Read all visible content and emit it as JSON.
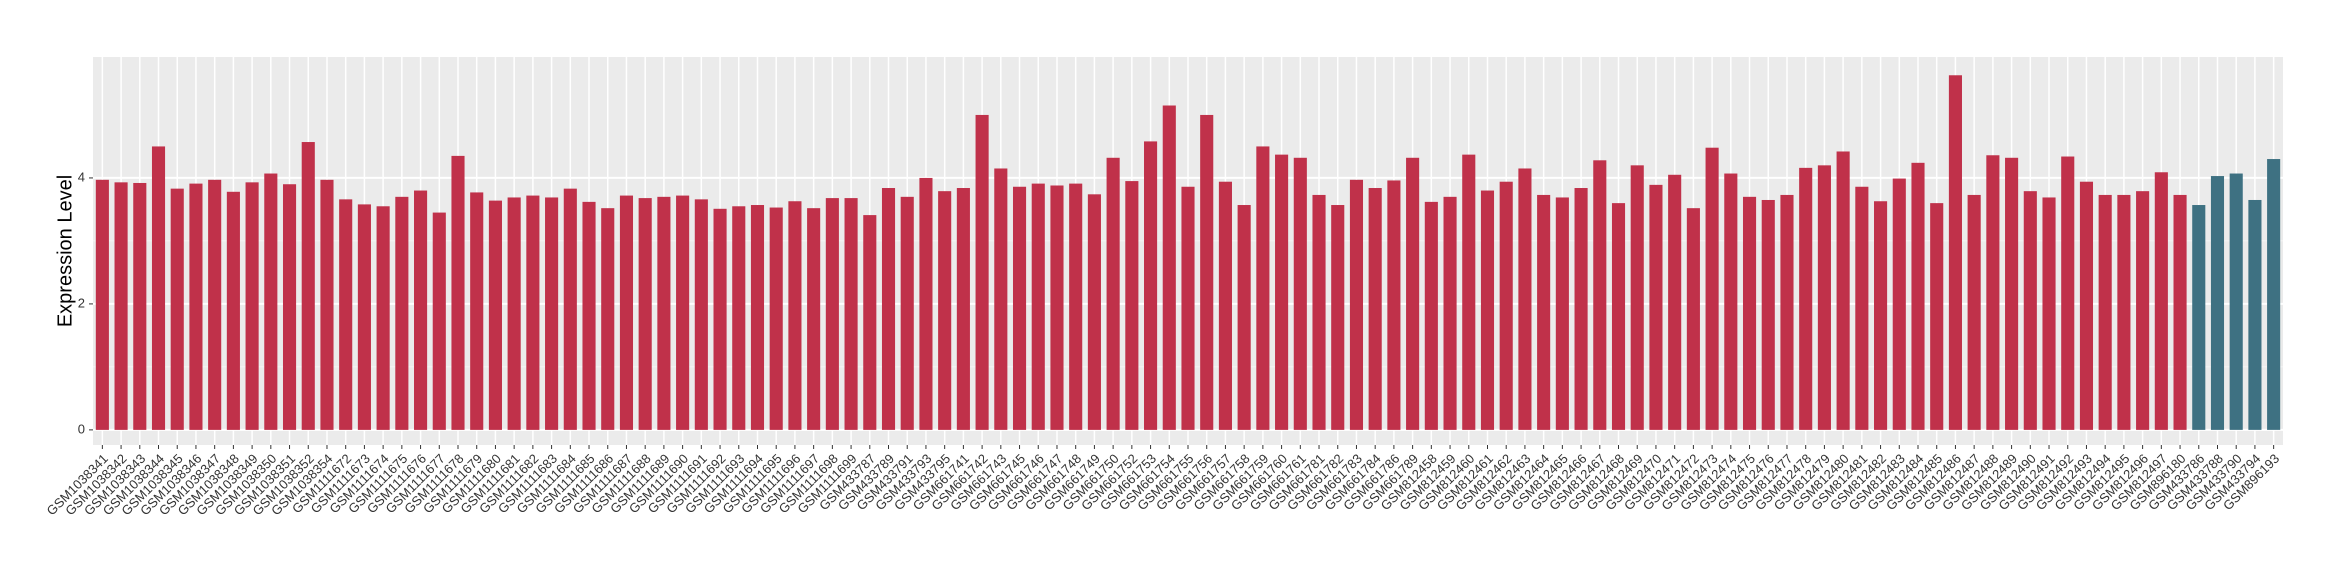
{
  "chart_data": {
    "type": "bar",
    "y_label": "Expression Level",
    "categories": [
      "GSM1038341",
      "GSM1038342",
      "GSM1038343",
      "GSM1038344",
      "GSM1038345",
      "GSM1038346",
      "GSM1038347",
      "GSM1038348",
      "GSM1038349",
      "GSM1038350",
      "GSM1038351",
      "GSM1038352",
      "GSM1038354",
      "GSM1111672",
      "GSM1111673",
      "GSM1111674",
      "GSM1111675",
      "GSM1111676",
      "GSM1111677",
      "GSM1111678",
      "GSM1111679",
      "GSM1111680",
      "GSM1111681",
      "GSM1111682",
      "GSM1111683",
      "GSM1111684",
      "GSM1111685",
      "GSM1111686",
      "GSM1111687",
      "GSM1111688",
      "GSM1111689",
      "GSM1111690",
      "GSM1111691",
      "GSM1111692",
      "GSM1111693",
      "GSM1111694",
      "GSM1111695",
      "GSM1111696",
      "GSM1111697",
      "GSM1111698",
      "GSM1111699",
      "GSM433787",
      "GSM433789",
      "GSM433791",
      "GSM433793",
      "GSM433795",
      "GSM661741",
      "GSM661742",
      "GSM661743",
      "GSM661745",
      "GSM661746",
      "GSM661747",
      "GSM661748",
      "GSM661749",
      "GSM661750",
      "GSM661752",
      "GSM661753",
      "GSM661754",
      "GSM661755",
      "GSM661756",
      "GSM661757",
      "GSM661758",
      "GSM661759",
      "GSM661760",
      "GSM661761",
      "GSM661781",
      "GSM661782",
      "GSM661783",
      "GSM661784",
      "GSM661786",
      "GSM661789",
      "GSM812458",
      "GSM812459",
      "GSM812460",
      "GSM812461",
      "GSM812462",
      "GSM812463",
      "GSM812464",
      "GSM812465",
      "GSM812466",
      "GSM812467",
      "GSM812468",
      "GSM812469",
      "GSM812470",
      "GSM812471",
      "GSM812472",
      "GSM812473",
      "GSM812474",
      "GSM812475",
      "GSM812476",
      "GSM812477",
      "GSM812478",
      "GSM812479",
      "GSM812480",
      "GSM812481",
      "GSM812482",
      "GSM812483",
      "GSM812484",
      "GSM812485",
      "GSM812486",
      "GSM812487",
      "GSM812488",
      "GSM812489",
      "GSM812490",
      "GSM812491",
      "GSM812492",
      "GSM812493",
      "GSM812494",
      "GSM812495",
      "GSM812496",
      "GSM812497",
      "GSM896180",
      "GSM433786",
      "GSM433788",
      "GSM433790",
      "GSM433794",
      "GSM896193"
    ],
    "values": [
      3.97,
      3.93,
      3.92,
      4.5,
      3.83,
      3.91,
      3.97,
      3.78,
      3.93,
      4.07,
      3.9,
      4.57,
      3.97,
      3.66,
      3.58,
      3.55,
      3.7,
      3.8,
      3.45,
      4.35,
      3.77,
      3.64,
      3.69,
      3.72,
      3.69,
      3.83,
      3.62,
      3.52,
      3.72,
      3.68,
      3.7,
      3.72,
      3.66,
      3.51,
      3.55,
      3.57,
      3.53,
      3.63,
      3.52,
      3.68,
      3.68,
      3.41,
      3.84,
      3.7,
      4.0,
      3.79,
      3.84,
      5.0,
      4.15,
      3.86,
      3.91,
      3.88,
      3.91,
      3.74,
      4.32,
      3.95,
      4.58,
      5.15,
      3.86,
      5.0,
      3.94,
      3.57,
      4.5,
      4.37,
      4.32,
      3.73,
      3.57,
      3.97,
      3.84,
      3.96,
      4.32,
      3.62,
      3.7,
      4.37,
      3.8,
      3.94,
      4.15,
      3.73,
      3.69,
      3.84,
      4.28,
      3.6,
      4.2,
      3.89,
      4.05,
      3.52,
      4.48,
      4.07,
      3.7,
      3.65,
      3.73,
      4.16,
      4.2,
      4.42,
      3.86,
      3.63,
      3.99,
      4.24,
      3.6,
      5.63,
      3.73,
      4.36,
      4.32,
      3.79,
      3.69,
      4.34,
      3.94,
      3.73,
      3.73,
      3.79,
      4.09,
      3.73,
      3.57,
      4.03,
      4.07,
      3.65,
      4.3
    ],
    "colors": [
      "#c0314a",
      "#c0314a",
      "#c0314a",
      "#c0314a",
      "#c0314a",
      "#c0314a",
      "#c0314a",
      "#c0314a",
      "#c0314a",
      "#c0314a",
      "#c0314a",
      "#c0314a",
      "#c0314a",
      "#c0314a",
      "#c0314a",
      "#c0314a",
      "#c0314a",
      "#c0314a",
      "#c0314a",
      "#c0314a",
      "#c0314a",
      "#c0314a",
      "#c0314a",
      "#c0314a",
      "#c0314a",
      "#c0314a",
      "#c0314a",
      "#c0314a",
      "#c0314a",
      "#c0314a",
      "#c0314a",
      "#c0314a",
      "#c0314a",
      "#c0314a",
      "#c0314a",
      "#c0314a",
      "#c0314a",
      "#c0314a",
      "#c0314a",
      "#c0314a",
      "#c0314a",
      "#c0314a",
      "#c0314a",
      "#c0314a",
      "#c0314a",
      "#c0314a",
      "#c0314a",
      "#c0314a",
      "#c0314a",
      "#c0314a",
      "#c0314a",
      "#c0314a",
      "#c0314a",
      "#c0314a",
      "#c0314a",
      "#c0314a",
      "#c0314a",
      "#c0314a",
      "#c0314a",
      "#c0314a",
      "#c0314a",
      "#c0314a",
      "#c0314a",
      "#c0314a",
      "#c0314a",
      "#c0314a",
      "#c0314a",
      "#c0314a",
      "#c0314a",
      "#c0314a",
      "#c0314a",
      "#c0314a",
      "#c0314a",
      "#c0314a",
      "#c0314a",
      "#c0314a",
      "#c0314a",
      "#c0314a",
      "#c0314a",
      "#c0314a",
      "#c0314a",
      "#c0314a",
      "#c0314a",
      "#c0314a",
      "#c0314a",
      "#c0314a",
      "#c0314a",
      "#c0314a",
      "#c0314a",
      "#c0314a",
      "#c0314a",
      "#c0314a",
      "#c0314a",
      "#c0314a",
      "#c0314a",
      "#c0314a",
      "#c0314a",
      "#c0314a",
      "#c0314a",
      "#c0314a",
      "#c0314a",
      "#c0314a",
      "#c0314a",
      "#c0314a",
      "#c0314a",
      "#c0314a",
      "#c0314a",
      "#c0314a",
      "#c0314a",
      "#c0314a",
      "#c0314a",
      "#c0314a",
      "#3e7182",
      "#3e7182",
      "#3e7182",
      "#3e7182",
      "#3e7182"
    ],
    "ylim": [
      -0.24,
      5.92
    ],
    "yticks": [
      0,
      2,
      4
    ],
    "grid": true
  }
}
